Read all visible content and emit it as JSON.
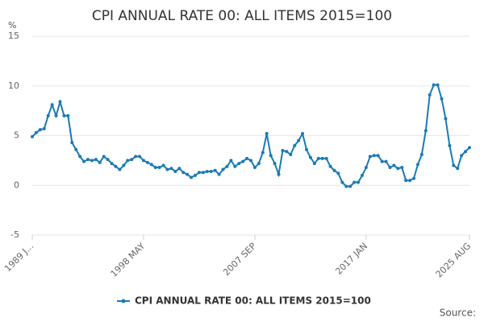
{
  "chart_data": {
    "type": "line",
    "title": "CPI ANNUAL RATE 00: ALL ITEMS 2015=100",
    "unit": "%",
    "source": "Source:",
    "categories": [
      "1989 J...",
      null,
      null,
      null,
      null,
      null,
      null,
      null,
      null,
      null,
      null,
      null,
      null,
      null,
      null,
      null,
      null,
      null,
      null,
      null,
      null,
      null,
      null,
      null,
      null,
      null,
      null,
      null,
      "1998 MAY",
      null,
      null,
      null,
      null,
      null,
      null,
      null,
      null,
      null,
      null,
      null,
      null,
      null,
      null,
      null,
      null,
      null,
      null,
      null,
      null,
      null,
      null,
      null,
      null,
      null,
      null,
      null,
      "2007 SEP",
      null,
      null,
      null,
      null,
      null,
      null,
      null,
      null,
      null,
      null,
      null,
      null,
      null,
      null,
      null,
      null,
      null,
      null,
      null,
      null,
      null,
      null,
      null,
      null,
      null,
      null,
      null,
      "2017 JAN",
      null,
      null,
      null,
      null,
      null,
      null,
      null,
      null,
      null,
      null,
      null,
      null,
      null,
      null,
      null,
      null,
      null,
      null,
      null,
      null,
      null,
      null,
      null,
      null,
      null,
      "2025 AUG"
    ],
    "series": [
      {
        "name": "CPI ANNUAL RATE 00: ALL ITEMS 2015=100",
        "color": "#1a7ab5",
        "values": [
          4.9,
          5.3,
          5.6,
          5.7,
          7.0,
          8.1,
          7.0,
          8.4,
          7.0,
          7.0,
          4.3,
          3.6,
          2.9,
          2.4,
          2.6,
          2.5,
          2.6,
          2.3,
          2.9,
          2.6,
          2.2,
          1.9,
          1.6,
          2.0,
          2.5,
          2.6,
          2.9,
          2.9,
          2.5,
          2.3,
          2.1,
          1.8,
          1.8,
          2.0,
          1.6,
          1.7,
          1.4,
          1.7,
          1.3,
          1.1,
          0.8,
          1.0,
          1.3,
          1.3,
          1.4,
          1.4,
          1.5,
          1.1,
          1.6,
          1.9,
          2.5,
          1.9,
          2.2,
          2.4,
          2.7,
          2.5,
          1.8,
          2.2,
          3.3,
          5.2,
          3.0,
          2.2,
          1.1,
          3.5,
          3.4,
          3.1,
          4.0,
          4.5,
          5.2,
          3.6,
          2.8,
          2.2,
          2.7,
          2.7,
          2.7,
          1.9,
          1.5,
          1.2,
          0.3,
          -0.1,
          -0.1,
          0.3,
          0.3,
          1.0,
          1.8,
          2.9,
          3.0,
          3.0,
          2.4,
          2.4,
          1.8,
          2.0,
          1.7,
          1.8,
          0.5,
          0.5,
          0.7,
          2.1,
          3.1,
          5.5,
          9.1,
          10.1,
          10.1,
          8.7,
          6.7,
          4.0,
          2.0,
          1.7,
          3.0,
          3.4,
          3.8
        ]
      }
    ],
    "ylim": [
      -5,
      15
    ],
    "yticks": [
      -5,
      0,
      5,
      10,
      15
    ],
    "grid": true,
    "legend": "bottom"
  }
}
